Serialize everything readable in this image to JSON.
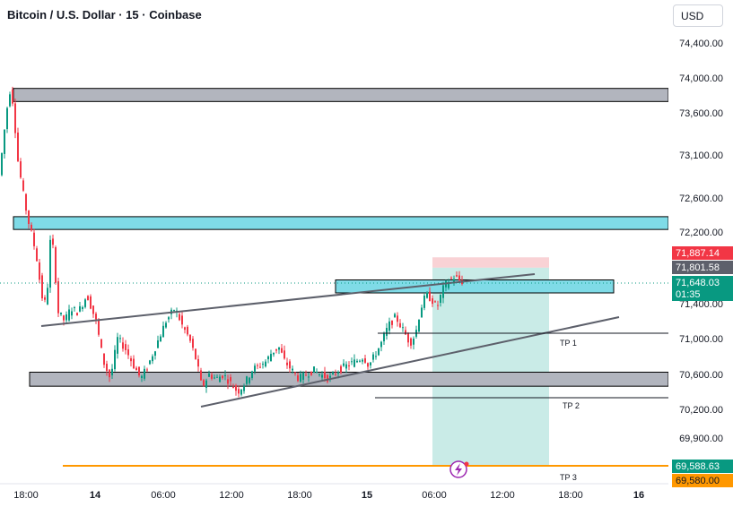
{
  "header": {
    "title": "Bitcoin / U.S. Dollar · 15 · Coinbase",
    "currency_button": "USD"
  },
  "chart_data": {
    "type": "candlestick",
    "title": "Bitcoin / U.S. Dollar · 15 · Coinbase",
    "ylim": [
      69500,
      74750
    ],
    "y_ticks": [
      {
        "value": 74400,
        "label": "74,400.00"
      },
      {
        "value": 74000,
        "label": "74,000.00"
      },
      {
        "value": 73600,
        "label": "73,600.00"
      },
      {
        "value": 73100,
        "label": "73,100.00"
      },
      {
        "value": 72600,
        "label": "72,600.00"
      },
      {
        "value": 72200,
        "label": "72,200.00"
      },
      {
        "value": 71400,
        "label": "71,400.00"
      },
      {
        "value": 71000,
        "label": "71,000.00"
      },
      {
        "value": 70600,
        "label": "70,600.00"
      },
      {
        "value": 70200,
        "label": "70,200.00"
      },
      {
        "value": 69900,
        "label": "69,900.00"
      }
    ],
    "x_ticks": [
      "18:00",
      "14",
      "06:00",
      "12:00",
      "18:00",
      "15",
      "06:00",
      "12:00",
      "18:00",
      "16"
    ],
    "price_labels": [
      {
        "name": "stop-loss",
        "value": 71887.14,
        "label": "71,887.14",
        "color": "#f23645"
      },
      {
        "name": "entry",
        "value": 71801.58,
        "label": "71,801.58",
        "color": "#5d606b"
      },
      {
        "name": "last",
        "value": 71648.03,
        "label": "71,648.03",
        "sub": "01:35",
        "color": "#089981"
      },
      {
        "name": "target",
        "value": 69588.63,
        "label": "69,588.63",
        "color": "#089981"
      },
      {
        "name": "orange-line",
        "value": 69580.0,
        "label": "69,580.00",
        "color": "#ff9800"
      }
    ],
    "annotations": [
      "TP 1",
      "TP 2",
      "TP 3"
    ],
    "colors": {
      "up": "#089981",
      "down": "#f23645",
      "zone_cyan": "#7fdbe7",
      "zone_gray": "#b2b5be",
      "orange": "#ff9800"
    }
  }
}
